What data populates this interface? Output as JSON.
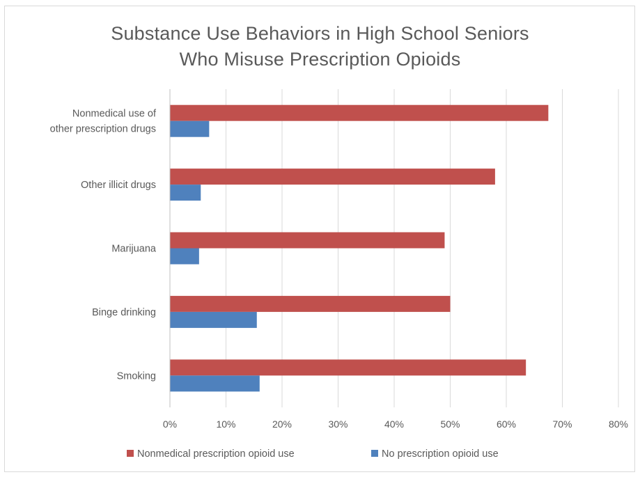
{
  "chart_data": {
    "type": "bar",
    "orientation": "horizontal",
    "title_lines": [
      "Substance Use Behaviors in High School Seniors",
      "Who Misuse Prescription Opioids"
    ],
    "categories": [
      [
        "Nonmedical use of",
        "other prescription drugs"
      ],
      [
        "Other illicit drugs"
      ],
      [
        "Marijuana"
      ],
      [
        "Binge drinking"
      ],
      [
        "Smoking"
      ]
    ],
    "series": [
      {
        "name": "Nonmedical prescription opioid use",
        "color": "#c0504d",
        "values": [
          67.5,
          58,
          49,
          50,
          63.5
        ]
      },
      {
        "name": "No prescription opioid use",
        "color": "#4f81bd",
        "values": [
          7,
          5.5,
          5.2,
          15.5,
          16
        ]
      }
    ],
    "xlim": [
      0,
      80
    ],
    "xticks": [
      "0%",
      "10%",
      "20%",
      "30%",
      "40%",
      "50%",
      "60%",
      "70%",
      "80%"
    ],
    "grid": true,
    "legend_position": "bottom"
  }
}
